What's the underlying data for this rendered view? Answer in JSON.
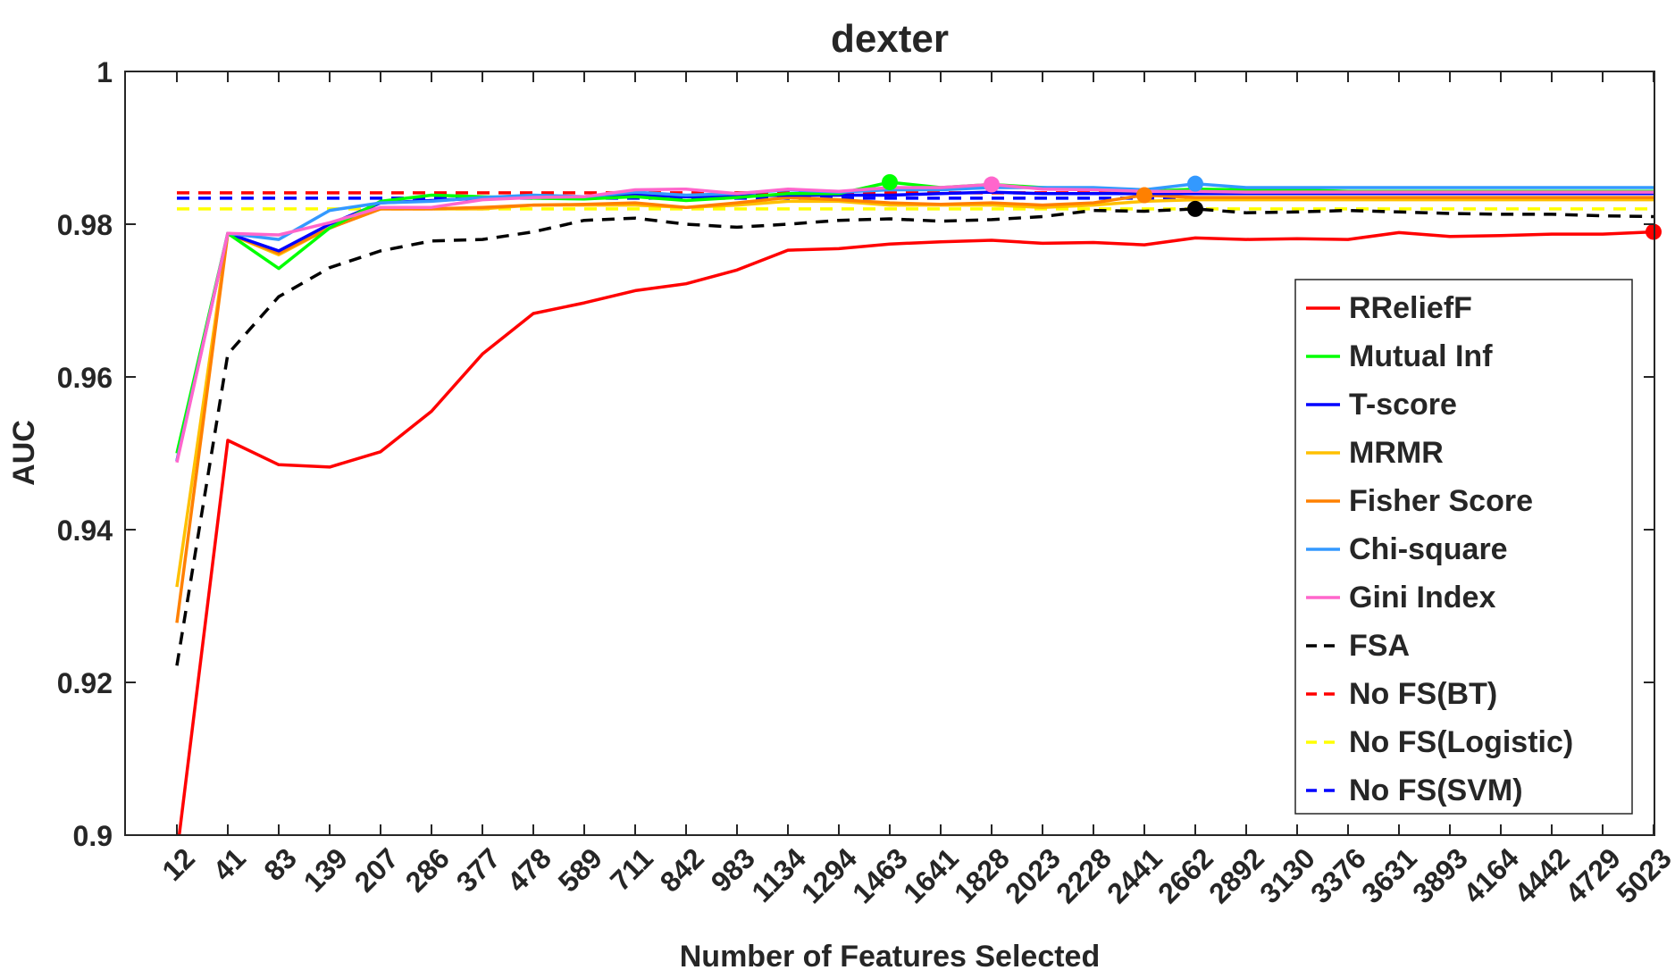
{
  "chart_data": {
    "type": "line",
    "title": "dexter",
    "xlabel": "Number of Features Selected",
    "ylabel": "AUC",
    "ylim": [
      0.9,
      1.0
    ],
    "yticks": [
      0.9,
      0.92,
      0.94,
      0.96,
      0.98,
      1
    ],
    "ytick_labels": [
      "0.9",
      "0.92",
      "0.94",
      "0.96",
      "0.98",
      "1"
    ],
    "categories": [
      "12",
      "41",
      "83",
      "139",
      "207",
      "286",
      "377",
      "478",
      "589",
      "711",
      "842",
      "983",
      "1134",
      "1294",
      "1463",
      "1641",
      "1828",
      "2023",
      "2228",
      "2441",
      "2662",
      "2892",
      "3130",
      "3376",
      "3631",
      "3893",
      "4164",
      "4442",
      "4729",
      "5023"
    ],
    "grid": false,
    "legend_position": "right-center",
    "series": [
      {
        "name": "RReliefF",
        "color": "#ff0000",
        "dash": false,
        "marker_index": 29,
        "values": [
          0.8975,
          0.9517,
          0.9485,
          0.9482,
          0.9502,
          0.9555,
          0.963,
          0.9683,
          0.9697,
          0.9713,
          0.9722,
          0.974,
          0.9766,
          0.9768,
          0.9774,
          0.9777,
          0.9779,
          0.9775,
          0.9776,
          0.9773,
          0.9782,
          0.978,
          0.9781,
          0.978,
          0.9789,
          0.9784,
          0.9785,
          0.9787,
          0.9787,
          0.979
        ]
      },
      {
        "name": "Mutual Inf",
        "color": "#00ff00",
        "dash": false,
        "marker_index": 14,
        "values": [
          0.95,
          0.9788,
          0.9742,
          0.9795,
          0.983,
          0.9838,
          0.9836,
          0.9834,
          0.9833,
          0.9836,
          0.9831,
          0.9835,
          0.984,
          0.984,
          0.9855,
          0.9848,
          0.9852,
          0.9848,
          0.9845,
          0.9843,
          0.9846,
          0.9845,
          0.9845,
          0.9843,
          0.9843,
          0.9843,
          0.9843,
          0.9843,
          0.9843,
          0.9843
        ]
      },
      {
        "name": "T-score",
        "color": "#0000ff",
        "dash": false,
        "marker_index": null,
        "values": [
          0.949,
          0.9788,
          0.9765,
          0.98,
          0.9828,
          0.9831,
          0.9834,
          0.9836,
          0.9835,
          0.9838,
          0.9836,
          0.9837,
          0.9838,
          0.9838,
          0.9838,
          0.984,
          0.9842,
          0.984,
          0.984,
          0.984,
          0.984,
          0.984,
          0.984,
          0.984,
          0.984,
          0.984,
          0.984,
          0.984,
          0.984,
          0.984
        ]
      },
      {
        "name": "MRMR",
        "color": "#ffc000",
        "dash": false,
        "marker_index": null,
        "values": [
          0.9325,
          0.9788,
          0.976,
          0.9795,
          0.982,
          0.982,
          0.982,
          0.9825,
          0.9825,
          0.9825,
          0.9822,
          0.9825,
          0.983,
          0.983,
          0.9825,
          0.9825,
          0.9825,
          0.9822,
          0.9825,
          0.983,
          0.9832,
          0.9832,
          0.9832,
          0.9832,
          0.9832,
          0.9832,
          0.9832,
          0.9832,
          0.9832,
          0.9832
        ]
      },
      {
        "name": "Fisher Score",
        "color": "#ff8000",
        "dash": false,
        "marker_index": 19,
        "values": [
          0.9278,
          0.9788,
          0.9762,
          0.9795,
          0.982,
          0.982,
          0.9822,
          0.9825,
          0.9826,
          0.9828,
          0.9822,
          0.9828,
          0.9835,
          0.9832,
          0.9828,
          0.9826,
          0.9828,
          0.9825,
          0.9828,
          0.9838,
          0.9835,
          0.9835,
          0.9835,
          0.9835,
          0.9835,
          0.9835,
          0.9835,
          0.9835,
          0.9835,
          0.9835
        ]
      },
      {
        "name": "Chi-square",
        "color": "#3399ff",
        "dash": false,
        "marker_index": 20,
        "values": [
          0.949,
          0.9788,
          0.978,
          0.9818,
          0.9828,
          0.983,
          0.9835,
          0.9838,
          0.9836,
          0.9842,
          0.9838,
          0.984,
          0.9845,
          0.9842,
          0.9845,
          0.9845,
          0.9848,
          0.9848,
          0.9848,
          0.9845,
          0.9853,
          0.9848,
          0.9848,
          0.9848,
          0.9848,
          0.9848,
          0.9848,
          0.9848,
          0.9848,
          0.9848
        ]
      },
      {
        "name": "Gini Index",
        "color": "#ff66cc",
        "dash": false,
        "marker_index": 16,
        "values": [
          0.9488,
          0.9788,
          0.9786,
          0.9802,
          0.9822,
          0.9822,
          0.9832,
          0.9835,
          0.9836,
          0.9845,
          0.9846,
          0.984,
          0.9846,
          0.9843,
          0.9848,
          0.9848,
          0.9852,
          0.9846,
          0.9845,
          0.9843,
          0.9843,
          0.9842,
          0.9842,
          0.9842,
          0.9842,
          0.9842,
          0.9842,
          0.9842,
          0.9842,
          0.9842
        ]
      },
      {
        "name": "FSA",
        "color": "#000000",
        "dash": true,
        "marker_index": 20,
        "values": [
          0.9222,
          0.963,
          0.9705,
          0.9743,
          0.9765,
          0.9778,
          0.978,
          0.979,
          0.9805,
          0.9808,
          0.98,
          0.9796,
          0.98,
          0.9805,
          0.9807,
          0.9804,
          0.9806,
          0.981,
          0.9818,
          0.9817,
          0.982,
          0.9815,
          0.9816,
          0.9818,
          0.9816,
          0.9814,
          0.9813,
          0.9813,
          0.9811,
          0.981
        ]
      },
      {
        "name": "No FS(BT)",
        "color": "#ff0000",
        "dash": true,
        "marker_index": null,
        "values": [
          0.9841,
          0.9841,
          0.9841,
          0.9841,
          0.9841,
          0.9841,
          0.9841,
          0.9841,
          0.9841,
          0.9841,
          0.9841,
          0.9841,
          0.9841,
          0.9841,
          0.9841,
          0.9841,
          0.9841,
          0.9841,
          0.9841,
          0.9841,
          0.9841,
          0.9841,
          0.9841,
          0.9841,
          0.9841,
          0.9841,
          0.9841,
          0.9841,
          0.9841,
          0.9841
        ]
      },
      {
        "name": "No FS(Logistic)",
        "color": "#ffff00",
        "dash": true,
        "marker_index": null,
        "values": [
          0.982,
          0.982,
          0.982,
          0.982,
          0.982,
          0.982,
          0.982,
          0.982,
          0.982,
          0.982,
          0.982,
          0.982,
          0.982,
          0.982,
          0.982,
          0.982,
          0.982,
          0.982,
          0.982,
          0.982,
          0.982,
          0.982,
          0.982,
          0.982,
          0.982,
          0.982,
          0.982,
          0.982,
          0.982,
          0.982
        ]
      },
      {
        "name": "No FS(SVM)",
        "color": "#0000ff",
        "dash": true,
        "marker_index": null,
        "values": [
          0.9834,
          0.9834,
          0.9834,
          0.9834,
          0.9834,
          0.9834,
          0.9834,
          0.9834,
          0.9834,
          0.9834,
          0.9834,
          0.9834,
          0.9834,
          0.9834,
          0.9834,
          0.9834,
          0.9834,
          0.9834,
          0.9834,
          0.9834,
          0.9834,
          0.9834,
          0.9834,
          0.9834,
          0.9834,
          0.9834,
          0.9834,
          0.9834,
          0.9834,
          0.9834
        ]
      }
    ]
  }
}
